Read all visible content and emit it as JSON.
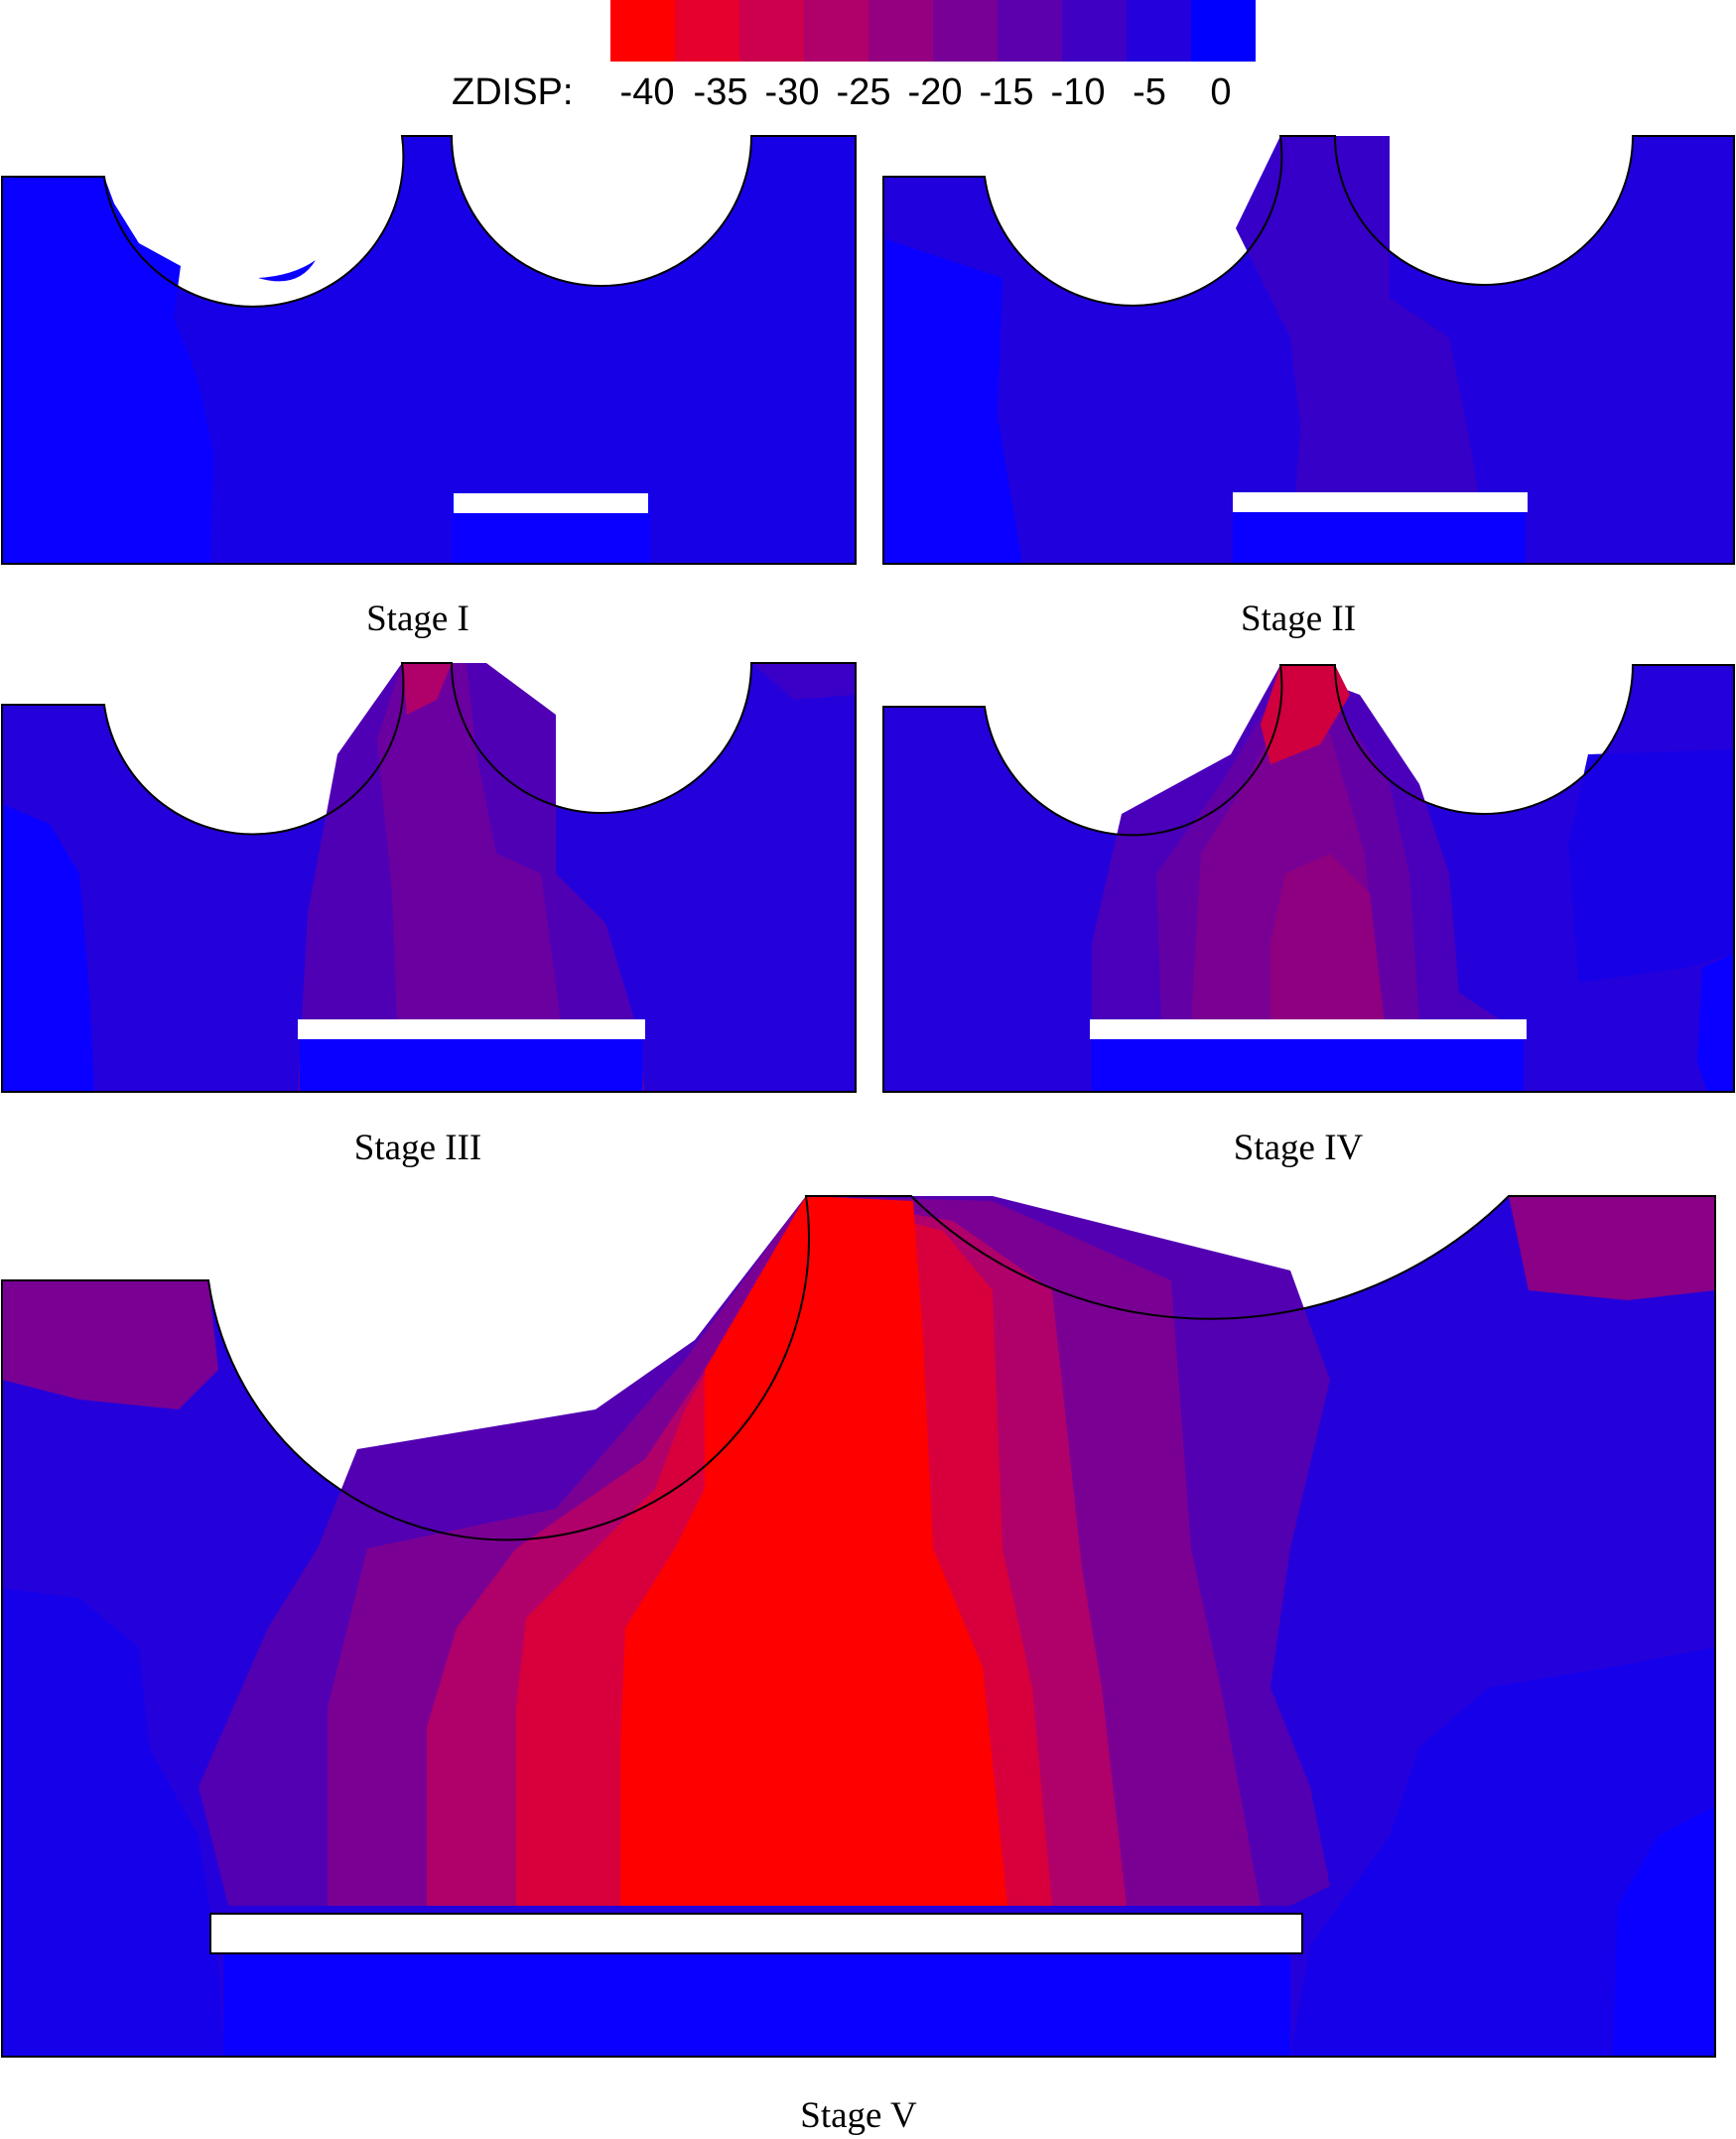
{
  "legend": {
    "title": "ZDISP:",
    "ticks": [
      "-40",
      "-35",
      "-30",
      "-25",
      "-20",
      "-15",
      "-10",
      "-5",
      "0"
    ],
    "colors": [
      "#ff0000",
      "#e6002e",
      "#cc004d",
      "#b0006a",
      "#94007f",
      "#780096",
      "#5c00ad",
      "#4000c4",
      "#2400db",
      "#0000ff"
    ]
  },
  "stages": [
    {
      "label": "Stage  I"
    },
    {
      "label": "Stage  II"
    },
    {
      "label": "Stage  III"
    },
    {
      "label": "Stage  IV"
    },
    {
      "label": "Stage  V"
    }
  ],
  "colors": {
    "level_0": "#1000ee",
    "level_5": "#2400db",
    "level_10": "#3d00c6",
    "level_15": "#5a00b0",
    "level_20": "#7a0094",
    "level_25": "#960078",
    "level_30": "#b6005c",
    "level_35": "#d8003c",
    "level_40": "#ff0000",
    "edge_blue": "#0000ff"
  }
}
